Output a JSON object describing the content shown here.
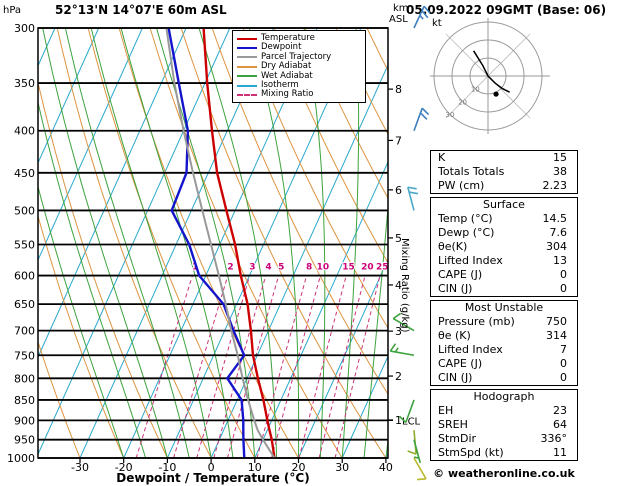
{
  "header": {
    "pressure_unit": "hPa",
    "station_title": "52°13'N 14°07'E 60m ASL",
    "datetime_title": "05.09.2022 09GMT (Base: 06)",
    "alt_axis_label_line1": "km",
    "alt_axis_label_line2": "ASL"
  },
  "legend": {
    "items": [
      {
        "label": "Temperature",
        "color": "#cc0000",
        "style": "solid"
      },
      {
        "label": "Dewpoint",
        "color": "#1414cc",
        "style": "solid"
      },
      {
        "label": "Parcel Trajectory",
        "color": "#999999",
        "style": "solid"
      },
      {
        "label": "Dry Adiabat",
        "color": "#dd9440",
        "style": "solid"
      },
      {
        "label": "Wet Adiabat",
        "color": "#3da23d",
        "style": "solid"
      },
      {
        "label": "Isotherm",
        "color": "#2aa8cc",
        "style": "solid"
      },
      {
        "label": "Mixing Ratio",
        "color": "#cc3377",
        "style": "dashed"
      }
    ]
  },
  "axes": {
    "pressure_ticks": [
      300,
      350,
      400,
      450,
      500,
      550,
      600,
      650,
      700,
      750,
      800,
      850,
      900,
      950,
      1000
    ],
    "temp_ticks": [
      -30,
      -20,
      -10,
      0,
      10,
      20,
      30,
      40
    ],
    "km_ticks": [
      1,
      2,
      3,
      4,
      5,
      6,
      7,
      8
    ],
    "xlabel": "Dewpoint / Temperature (°C)",
    "mixing_ratio_axis_label": "Mixing Ratio (g/kg)",
    "mixing_ratio_values": [
      1,
      2,
      3,
      4,
      5,
      8,
      10,
      15,
      20,
      25
    ],
    "lcl_label": "LCL"
  },
  "chart_data": {
    "type": "line",
    "title": "Skew-T log-P sounding 52°13'N 14°07'E 60m ASL 05.09.2022 09GMT",
    "x_axis": "Dewpoint / Temperature (°C)",
    "y_axis": "Pressure (hPa), log scale, 1000 at bottom to 300 at top",
    "x_range": [
      -30,
      40
    ],
    "pressure_range": [
      300,
      1000
    ],
    "pressure_hPa": [
      1000,
      950,
      925,
      900,
      850,
      800,
      750,
      700,
      650,
      600,
      550,
      500,
      450,
      400,
      350,
      300
    ],
    "series": [
      {
        "name": "Temperature",
        "color": "#cc0000",
        "width": 2.4,
        "values_C": [
          14.5,
          12.0,
          10.5,
          9.0,
          6.0,
          2.5,
          -1.0,
          -4.0,
          -7.5,
          -12.0,
          -16.5,
          -22.0,
          -28.0,
          -33.5,
          -39.5,
          -46.0
        ]
      },
      {
        "name": "Dewpoint",
        "color": "#1414cc",
        "width": 2.4,
        "values_C": [
          7.6,
          5.5,
          4.5,
          3.5,
          1.0,
          -4.5,
          -3.0,
          -8.0,
          -13.0,
          -21.5,
          -27.0,
          -34.5,
          -35.0,
          -39.0,
          -46.0,
          -54.0
        ]
      },
      {
        "name": "Parcel Trajectory",
        "color": "#999999",
        "width": 2.0,
        "values_C": [
          14.5,
          10.0,
          7.8,
          6.0,
          2.5,
          -1.0,
          -4.5,
          -8.5,
          -12.5,
          -17.0,
          -22.0,
          -27.5,
          -33.5,
          -40.0,
          -47.0,
          -54.5
        ]
      }
    ],
    "lcl_pressure_hPa": 900
  },
  "wind_barbs": [
    {
      "p": 300,
      "dir_deg": 25,
      "spd_kt": 25,
      "color": "#3f7fbf"
    },
    {
      "p": 400,
      "dir_deg": 20,
      "spd_kt": 20,
      "color": "#3f7fbf"
    },
    {
      "p": 500,
      "dir_deg": 345,
      "spd_kt": 20,
      "color": "#49a8c4"
    },
    {
      "p": 700,
      "dir_deg": 300,
      "spd_kt": 10,
      "color": "#3da23d"
    },
    {
      "p": 750,
      "dir_deg": 280,
      "spd_kt": 15,
      "color": "#3da23d"
    },
    {
      "p": 850,
      "dir_deg": 200,
      "spd_kt": 10,
      "color": "#3da23d"
    },
    {
      "p": 925,
      "dir_deg": 175,
      "spd_kt": 10,
      "color": "#8fae2b"
    },
    {
      "p": 950,
      "dir_deg": 165,
      "spd_kt": 5,
      "color": "#3da23d"
    },
    {
      "p": 1000,
      "dir_deg": 150,
      "spd_kt": 10,
      "color": "#b9b92a"
    }
  ],
  "hodograph": {
    "unit_label": "kt",
    "ring_values_kt": [
      10,
      20,
      30
    ],
    "trace_uv_kt": [
      [
        -8,
        14
      ],
      [
        -3,
        6
      ],
      [
        0,
        0
      ],
      [
        4,
        -4
      ],
      [
        8,
        -7
      ],
      [
        12,
        -9
      ]
    ],
    "storm_dir_deg": 336,
    "storm_spd_kt": 11
  },
  "table": {
    "indices": [
      {
        "label": "K",
        "value": "15"
      },
      {
        "label": "Totals Totals",
        "value": "38"
      },
      {
        "label": "PW (cm)",
        "value": "2.23"
      }
    ],
    "sections": [
      {
        "title": "Surface",
        "rows": [
          [
            "Temp (°C)",
            "14.5"
          ],
          [
            "Dewp (°C)",
            "7.6"
          ],
          [
            "θe(K)",
            "304"
          ],
          [
            "Lifted Index",
            "13"
          ],
          [
            "CAPE (J)",
            "0"
          ],
          [
            "CIN (J)",
            "0"
          ]
        ]
      },
      {
        "title": "Most Unstable",
        "rows": [
          [
            "Pressure (mb)",
            "750"
          ],
          [
            "θe (K)",
            "314"
          ],
          [
            "Lifted Index",
            "7"
          ],
          [
            "CAPE (J)",
            "0"
          ],
          [
            "CIN (J)",
            "0"
          ]
        ]
      },
      {
        "title": "Hodograph",
        "rows": [
          [
            "EH",
            "23"
          ],
          [
            "SREH",
            "64"
          ],
          [
            "StmDir",
            "336°"
          ],
          [
            "StmSpd (kt)",
            "11"
          ]
        ]
      }
    ]
  },
  "footer": {
    "copyright": "© weatheronline.co.uk"
  }
}
